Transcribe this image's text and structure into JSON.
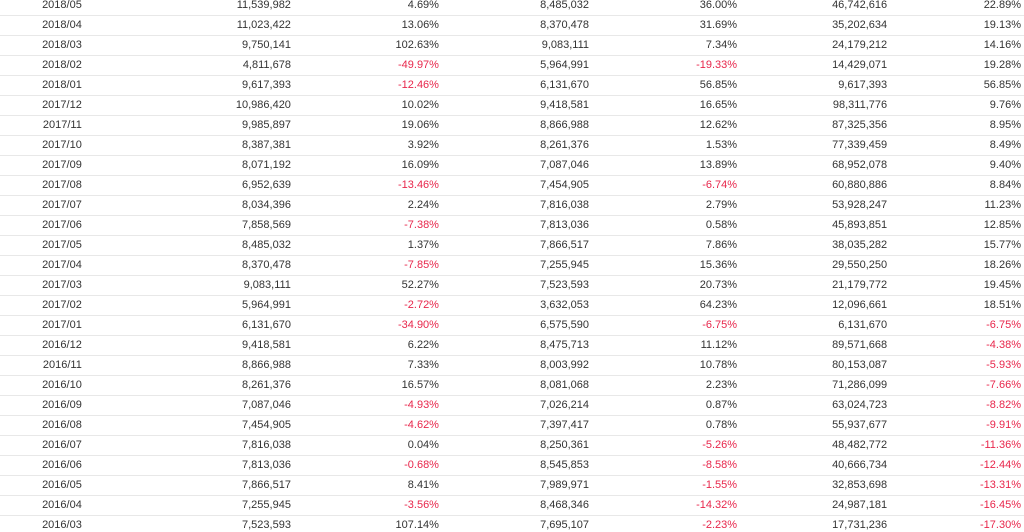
{
  "colors": {
    "negative": "#e8264b",
    "text": "#333333",
    "row_border": "#e8e8e8"
  },
  "rows": [
    [
      "2018/05",
      "11,539,982",
      "4.69%",
      "8,485,032",
      "36.00%",
      "46,742,616",
      "22.89%"
    ],
    [
      "2018/04",
      "11,023,422",
      "13.06%",
      "8,370,478",
      "31.69%",
      "35,202,634",
      "19.13%"
    ],
    [
      "2018/03",
      "9,750,141",
      "102.63%",
      "9,083,111",
      "7.34%",
      "24,179,212",
      "14.16%"
    ],
    [
      "2018/02",
      "4,811,678",
      "-49.97%",
      "5,964,991",
      "-19.33%",
      "14,429,071",
      "19.28%"
    ],
    [
      "2018/01",
      "9,617,393",
      "-12.46%",
      "6,131,670",
      "56.85%",
      "9,617,393",
      "56.85%"
    ],
    [
      "2017/12",
      "10,986,420",
      "10.02%",
      "9,418,581",
      "16.65%",
      "98,311,776",
      "9.76%"
    ],
    [
      "2017/11",
      "9,985,897",
      "19.06%",
      "8,866,988",
      "12.62%",
      "87,325,356",
      "8.95%"
    ],
    [
      "2017/10",
      "8,387,381",
      "3.92%",
      "8,261,376",
      "1.53%",
      "77,339,459",
      "8.49%"
    ],
    [
      "2017/09",
      "8,071,192",
      "16.09%",
      "7,087,046",
      "13.89%",
      "68,952,078",
      "9.40%"
    ],
    [
      "2017/08",
      "6,952,639",
      "-13.46%",
      "7,454,905",
      "-6.74%",
      "60,880,886",
      "8.84%"
    ],
    [
      "2017/07",
      "8,034,396",
      "2.24%",
      "7,816,038",
      "2.79%",
      "53,928,247",
      "11.23%"
    ],
    [
      "2017/06",
      "7,858,569",
      "-7.38%",
      "7,813,036",
      "0.58%",
      "45,893,851",
      "12.85%"
    ],
    [
      "2017/05",
      "8,485,032",
      "1.37%",
      "7,866,517",
      "7.86%",
      "38,035,282",
      "15.77%"
    ],
    [
      "2017/04",
      "8,370,478",
      "-7.85%",
      "7,255,945",
      "15.36%",
      "29,550,250",
      "18.26%"
    ],
    [
      "2017/03",
      "9,083,111",
      "52.27%",
      "7,523,593",
      "20.73%",
      "21,179,772",
      "19.45%"
    ],
    [
      "2017/02",
      "5,964,991",
      "-2.72%",
      "3,632,053",
      "64.23%",
      "12,096,661",
      "18.51%"
    ],
    [
      "2017/01",
      "6,131,670",
      "-34.90%",
      "6,575,590",
      "-6.75%",
      "6,131,670",
      "-6.75%"
    ],
    [
      "2016/12",
      "9,418,581",
      "6.22%",
      "8,475,713",
      "11.12%",
      "89,571,668",
      "-4.38%"
    ],
    [
      "2016/11",
      "8,866,988",
      "7.33%",
      "8,003,992",
      "10.78%",
      "80,153,087",
      "-5.93%"
    ],
    [
      "2016/10",
      "8,261,376",
      "16.57%",
      "8,081,068",
      "2.23%",
      "71,286,099",
      "-7.66%"
    ],
    [
      "2016/09",
      "7,087,046",
      "-4.93%",
      "7,026,214",
      "0.87%",
      "63,024,723",
      "-8.82%"
    ],
    [
      "2016/08",
      "7,454,905",
      "-4.62%",
      "7,397,417",
      "0.78%",
      "55,937,677",
      "-9.91%"
    ],
    [
      "2016/07",
      "7,816,038",
      "0.04%",
      "8,250,361",
      "-5.26%",
      "48,482,772",
      "-11.36%"
    ],
    [
      "2016/06",
      "7,813,036",
      "-0.68%",
      "8,545,853",
      "-8.58%",
      "40,666,734",
      "-12.44%"
    ],
    [
      "2016/05",
      "7,866,517",
      "8.41%",
      "7,989,971",
      "-1.55%",
      "32,853,698",
      "-13.31%"
    ],
    [
      "2016/04",
      "7,255,945",
      "-3.56%",
      "8,468,346",
      "-14.32%",
      "24,987,181",
      "-16.45%"
    ],
    [
      "2016/03",
      "7,523,593",
      "107.14%",
      "7,695,107",
      "-2.23%",
      "17,731,236",
      "-17.30%"
    ]
  ]
}
